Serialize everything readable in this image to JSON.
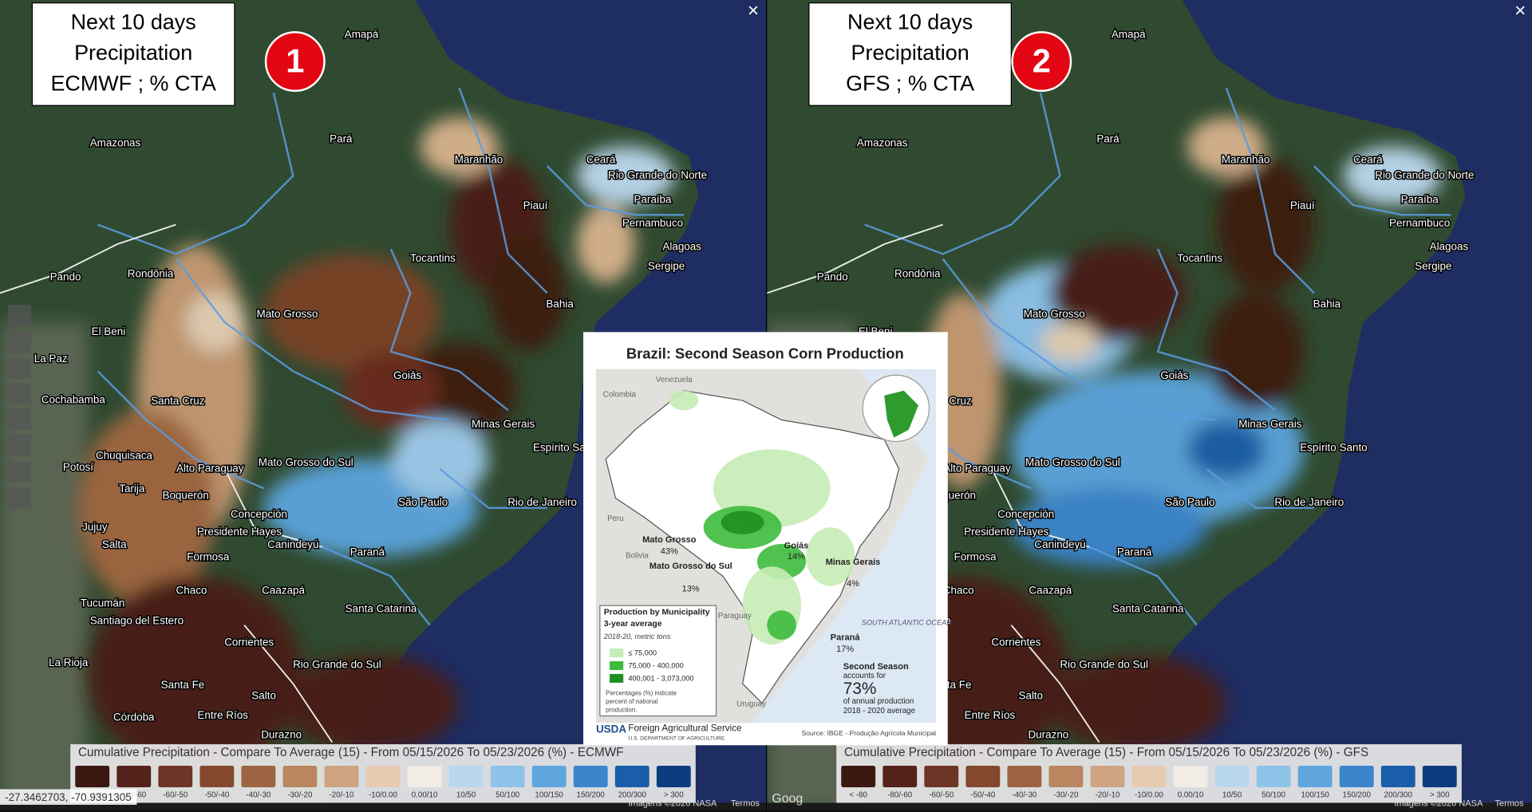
{
  "panels": [
    {
      "title": [
        "Next 10 days",
        "Precipitation",
        "ECMWF ; % CTA"
      ],
      "badge": "1",
      "legend_title": "Cumulative Precipitation - Compare To Average (15) - From 05/15/2026 To 05/23/2026 (%) - ECMWF"
    },
    {
      "title": [
        "Next 10 days",
        "Precipitation",
        "GFS ; % CTA"
      ],
      "badge": "2",
      "legend_title": "Cumulative Precipitation - Compare To Average (15) - From 05/15/2026 To 05/23/2026 (%) - GFS"
    }
  ],
  "legend": {
    "labels": [
      "< -80",
      "-80/-60",
      "-60/-50",
      "-50/-40",
      "-40/-30",
      "-30/-20",
      "-20/-10",
      "-10/0.00",
      "0.00/10",
      "10/50",
      "50/100",
      "100/150",
      "150/200",
      "200/300",
      "> 300"
    ],
    "colors": [
      "#3a1810",
      "#54221a",
      "#6e3426",
      "#84482f",
      "#9c6440",
      "#b98660",
      "#cfa482",
      "#e7cbb0",
      "#f2ece6",
      "#b9d8f0",
      "#8ec3ea",
      "#5fa6de",
      "#3a85cc",
      "#1a5ea9",
      "#0c3c7f"
    ]
  },
  "places": [
    "Amapá",
    "Amazonas",
    "Pará",
    "Maranhão",
    "Ceará",
    "Rio Grande do Norte",
    "Paraíba",
    "Pernambuco",
    "Piauí",
    "Alagoas",
    "Sergipe",
    "Tocantins",
    "Rondônia",
    "Pando",
    "Bahia",
    "Mato Grosso",
    "El Beni",
    "La Paz",
    "Goiás",
    "Cochabamba",
    "Santa Cruz",
    "Minas Gerais",
    "Chuquisaca",
    "Espírito Santo",
    "Potosí",
    "Mato Grosso do Sul",
    "Alto Paraguay",
    "Tarija",
    "Boquerón",
    "São Paulo",
    "Rio de Janeiro",
    "Jujuy",
    "Concepción",
    "Salta",
    "Presidente Hayes",
    "Canindeyú",
    "Paraná",
    "Formosa",
    "Chaco",
    "Caazapá",
    "Tucumán",
    "Santiago del Estero",
    "Santa Catarina",
    "Corrientes",
    "La Rioja",
    "Rio Grande do Sul",
    "Santa Fe",
    "Córdoba",
    "Entre Ríos",
    "Salto",
    "Durazno"
  ],
  "close": "×",
  "coordinates": "-27.3462703, -70.9391305",
  "imagery": "Imagens ©2026 NASA",
  "terms": "Termos",
  "google": "Goog",
  "inset": {
    "title": "Brazil: Second Season Corn Production",
    "countries": [
      "Venezuela",
      "Colombia",
      "Peru",
      "Bolivia",
      "Paraguay",
      "Uruguay"
    ],
    "states": [
      {
        "name": "Mato Grosso",
        "share": "43%"
      },
      {
        "name": "Goiás",
        "share": "14%"
      },
      {
        "name": "Mato Grosso do Sul",
        "share": "13%"
      },
      {
        "name": "Minas Gerais",
        "share": "4%"
      },
      {
        "name": "Paraná",
        "share": "17%"
      }
    ],
    "ocean": "SOUTH ATLANTIC OCEAN",
    "legend_title": [
      "Production by Municipality",
      "3-year average"
    ],
    "legend_unit": "2018-20, metric tons",
    "legend_items": [
      "≤ 75,000",
      "75,000 - 400,000",
      "400,001 - 3,073,000"
    ],
    "legend_note": [
      "Percentages (%) indicate",
      "percent of national",
      "production."
    ],
    "summary": [
      "Second Season",
      "accounts for",
      "73%",
      "of annual production",
      "2018 - 2020 average"
    ],
    "agency": "USDA",
    "agency_name": "Foreign Agricultural Service",
    "department": "U.S. DEPARTMENT OF AGRICULTURE",
    "source": "Source: IBGE - Produção Agrícola Municipal"
  }
}
